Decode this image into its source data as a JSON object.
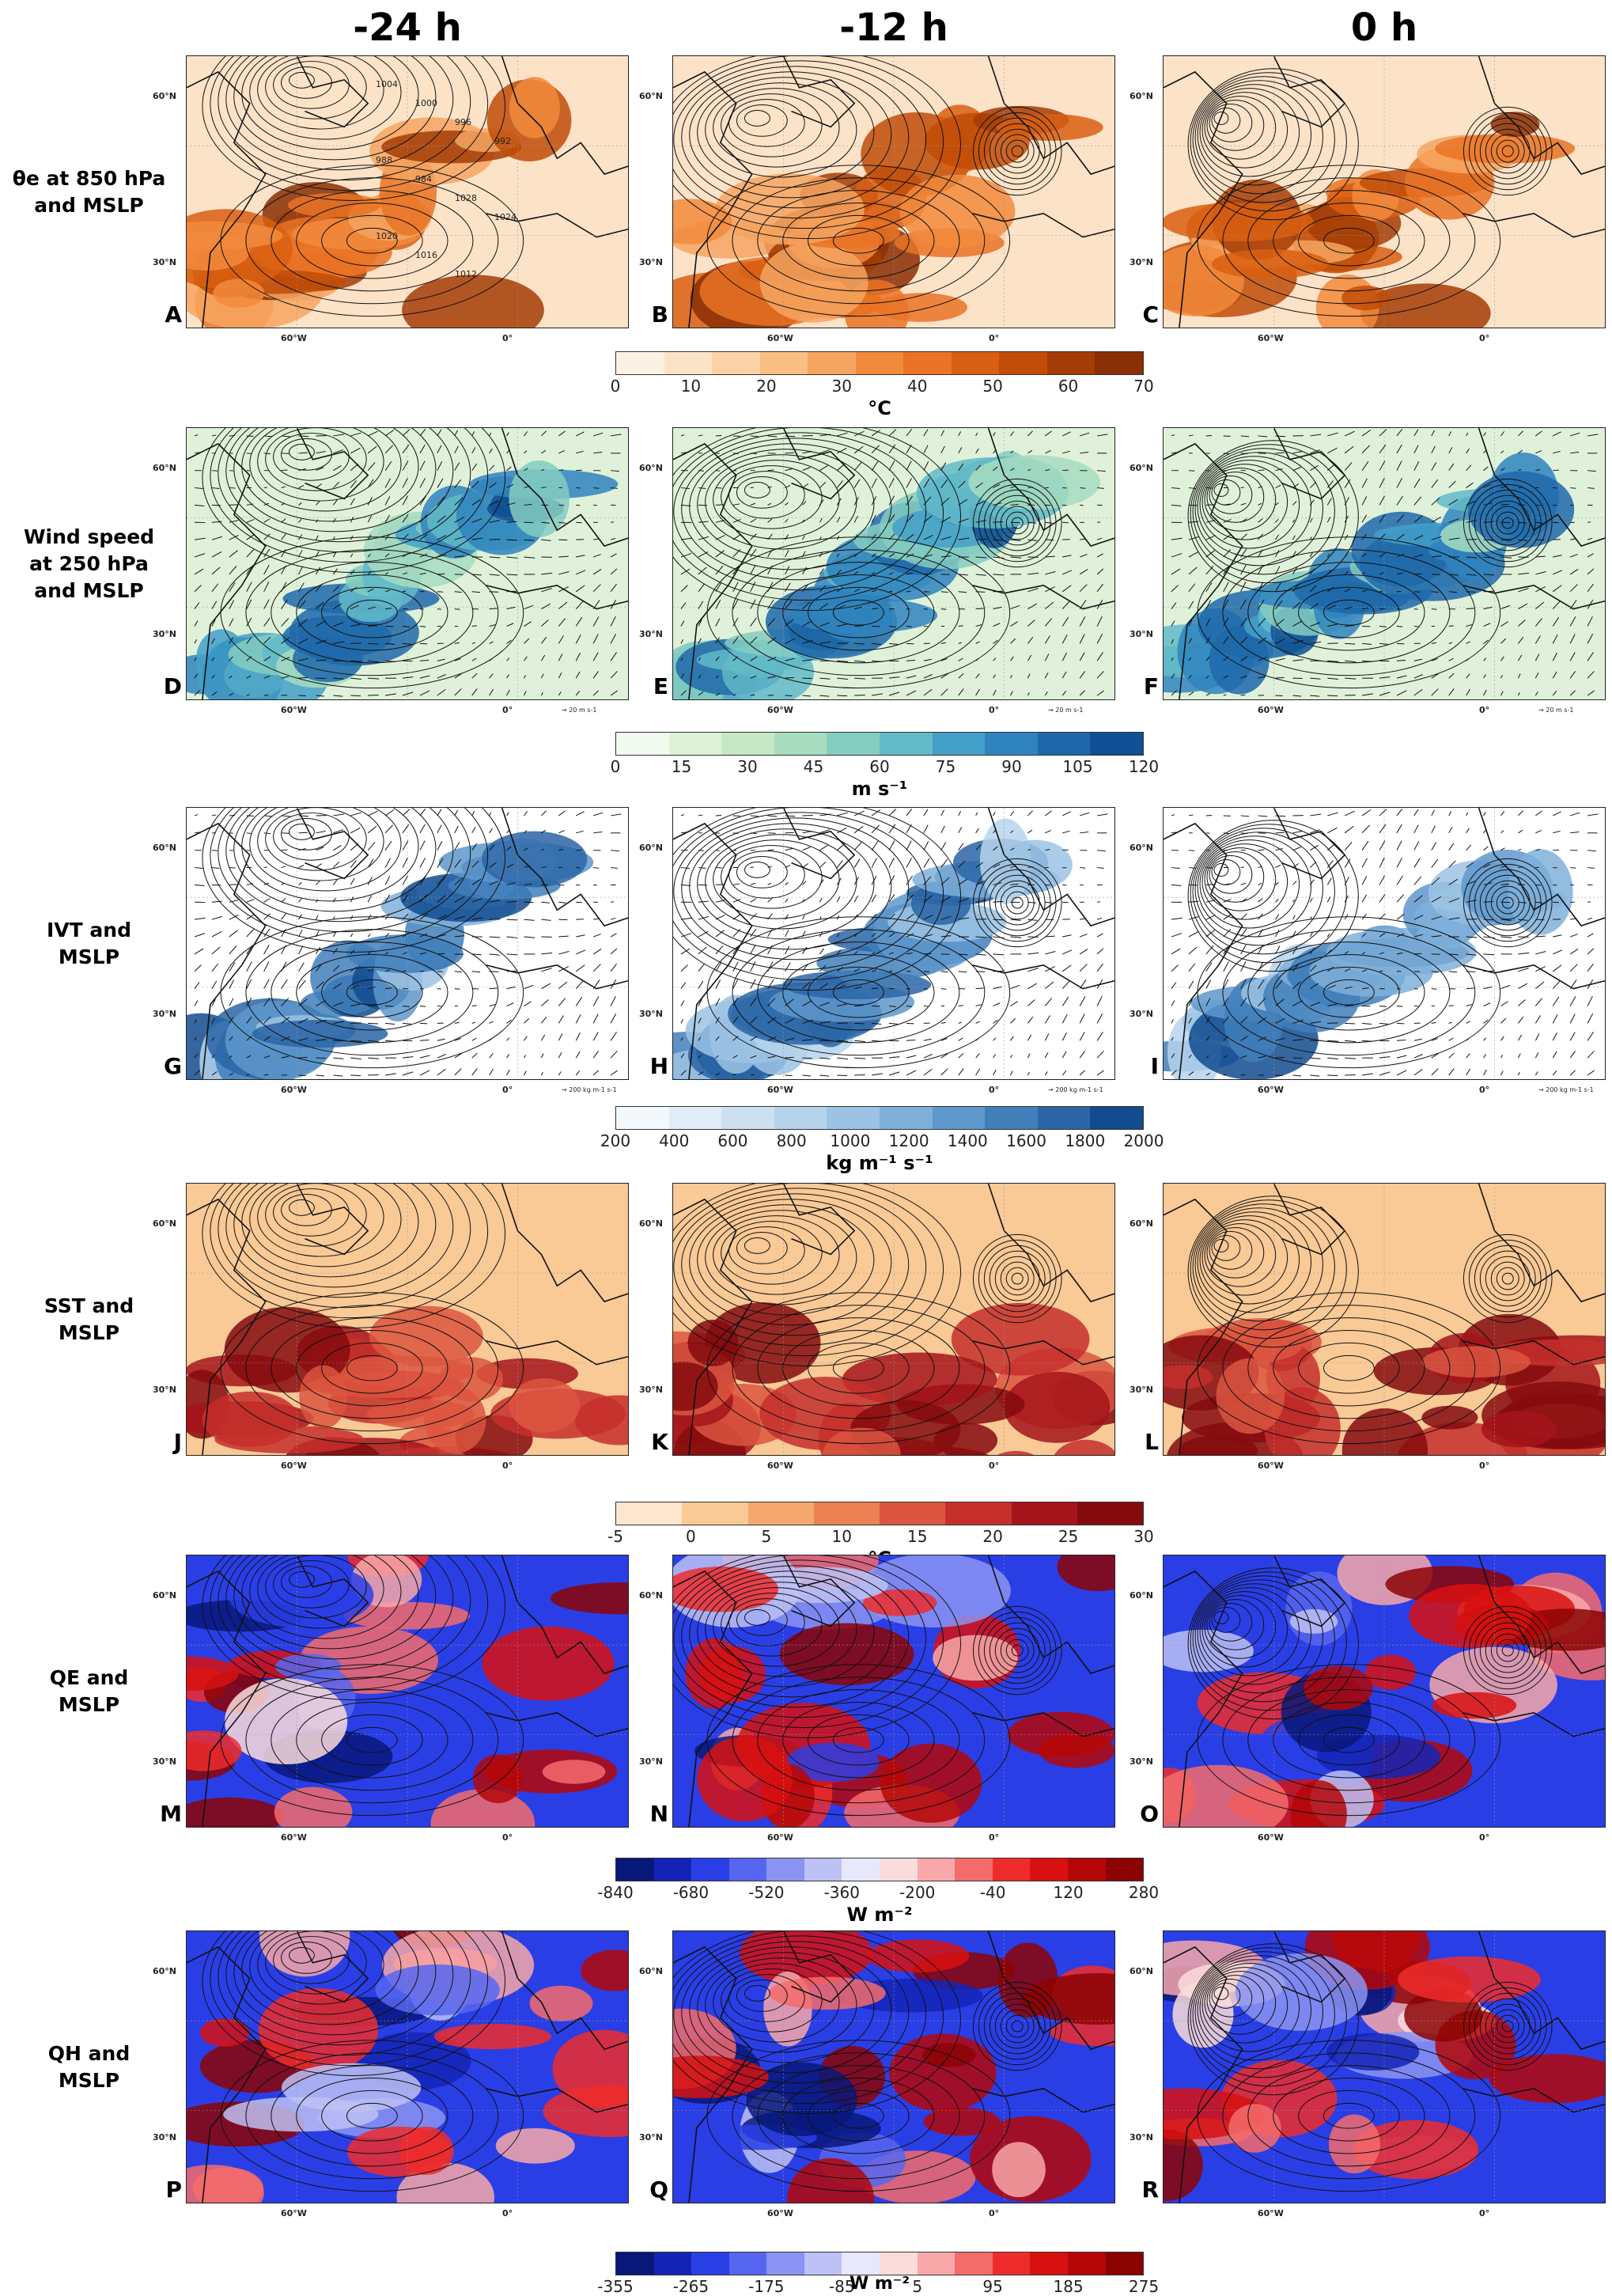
{
  "columns": [
    "-24 h",
    "-12 h",
    "0 h"
  ],
  "rows": [
    {
      "label_lines": [
        "θe at 850 hPa",
        "and MSLP"
      ],
      "panels": [
        "A",
        "B",
        "C"
      ],
      "palette": [
        "#fdf1e4",
        "#fce3c8",
        "#fbd3a6",
        "#f9bf83",
        "#f6a560",
        "#f28a3c",
        "#ea7325",
        "#d95f12",
        "#c04c08",
        "#a33c05",
        "#8a2e03"
      ],
      "scale_label": ""
    },
    {
      "label_lines": [
        "Wind speed",
        "at 250 hPa",
        "and MSLP"
      ],
      "panels": [
        "D",
        "E",
        "F"
      ],
      "palette": [
        "#f1faee",
        "#dff2d9",
        "#c6e8c4",
        "#a7dcc0",
        "#85cdc1",
        "#62bac8",
        "#43a0c9",
        "#2f84bd",
        "#1e68aa",
        "#0f4f93"
      ],
      "scale_label": "→ 20 m s-1"
    },
    {
      "label_lines": [
        "IVT and",
        "MSLP"
      ],
      "panels": [
        "G",
        "H",
        "I"
      ],
      "palette": [
        "#f3f8fd",
        "#e1ecf8",
        "#cde0f2",
        "#b6d3ec",
        "#9cc3e4",
        "#7fb0da",
        "#5e98cc",
        "#417fbb",
        "#2a65a6",
        "#124b8f"
      ],
      "scale_label": "→ 200 kg m-1 s-1"
    },
    {
      "label_lines": [
        "SST and",
        "MSLP"
      ],
      "panels": [
        "J",
        "K",
        "L"
      ],
      "palette": [
        "#fde6cd",
        "#f9c996",
        "#f4a86d",
        "#ec8154",
        "#dc5540",
        "#c52f2c",
        "#a5141a",
        "#850a0e"
      ],
      "scale_label": ""
    },
    {
      "label_lines": [
        "QE and",
        "MSLP"
      ],
      "panels": [
        "M",
        "N",
        "O"
      ],
      "palette": [
        "#08177a",
        "#1424b6",
        "#2a3ee6",
        "#5666f0",
        "#8b94f2",
        "#bdc1f5",
        "#e7e8fb",
        "#fbdcdc",
        "#f8a8a8",
        "#f46b6b",
        "#ef2c2c",
        "#d81010",
        "#b50707",
        "#8c0303"
      ],
      "scale_label": ""
    },
    {
      "label_lines": [
        "QH and",
        "MSLP"
      ],
      "panels": [
        "P",
        "Q",
        "R"
      ],
      "palette": [
        "#08177a",
        "#1424b6",
        "#2a3ee6",
        "#5666f0",
        "#8b94f2",
        "#bdc1f5",
        "#e7e8fb",
        "#fbdcdc",
        "#f8a8a8",
        "#f46b6b",
        "#ef2c2c",
        "#d81010",
        "#b50707",
        "#8c0303"
      ],
      "scale_label": ""
    }
  ],
  "map_labels": {
    "lat60": "60°N",
    "lat30": "30°N",
    "lon60": "60°W",
    "lon0": "0°"
  },
  "colorbars": [
    {
      "ticks": [
        "0",
        "10",
        "20",
        "30",
        "40",
        "50",
        "60",
        "70"
      ],
      "unit": "°C"
    },
    {
      "ticks": [
        "0",
        "15",
        "30",
        "45",
        "60",
        "75",
        "90",
        "105",
        "120"
      ],
      "unit": "m s⁻¹"
    },
    {
      "ticks": [
        "200",
        "400",
        "600",
        "800",
        "1000",
        "1200",
        "1400",
        "1600",
        "1800",
        "2000"
      ],
      "unit": "kg m⁻¹ s⁻¹"
    },
    {
      "ticks": [
        "-5",
        "0",
        "5",
        "10",
        "15",
        "20",
        "25",
        "30"
      ],
      "unit": "°C"
    },
    {
      "ticks": [
        "-840",
        "-680",
        "-520",
        "-360",
        "-200",
        "-40",
        "120",
        "280"
      ],
      "unit": "W m⁻²"
    },
    {
      "ticks": [
        "-355",
        "-265",
        "-175",
        "-85",
        "5",
        "95",
        "185",
        "275"
      ],
      "unit": "W m⁻²"
    }
  ],
  "isobar_labels": [
    "1004",
    "1000",
    "996",
    "992",
    "988",
    "984",
    "1028",
    "1024",
    "1020",
    "1016",
    "1012"
  ]
}
